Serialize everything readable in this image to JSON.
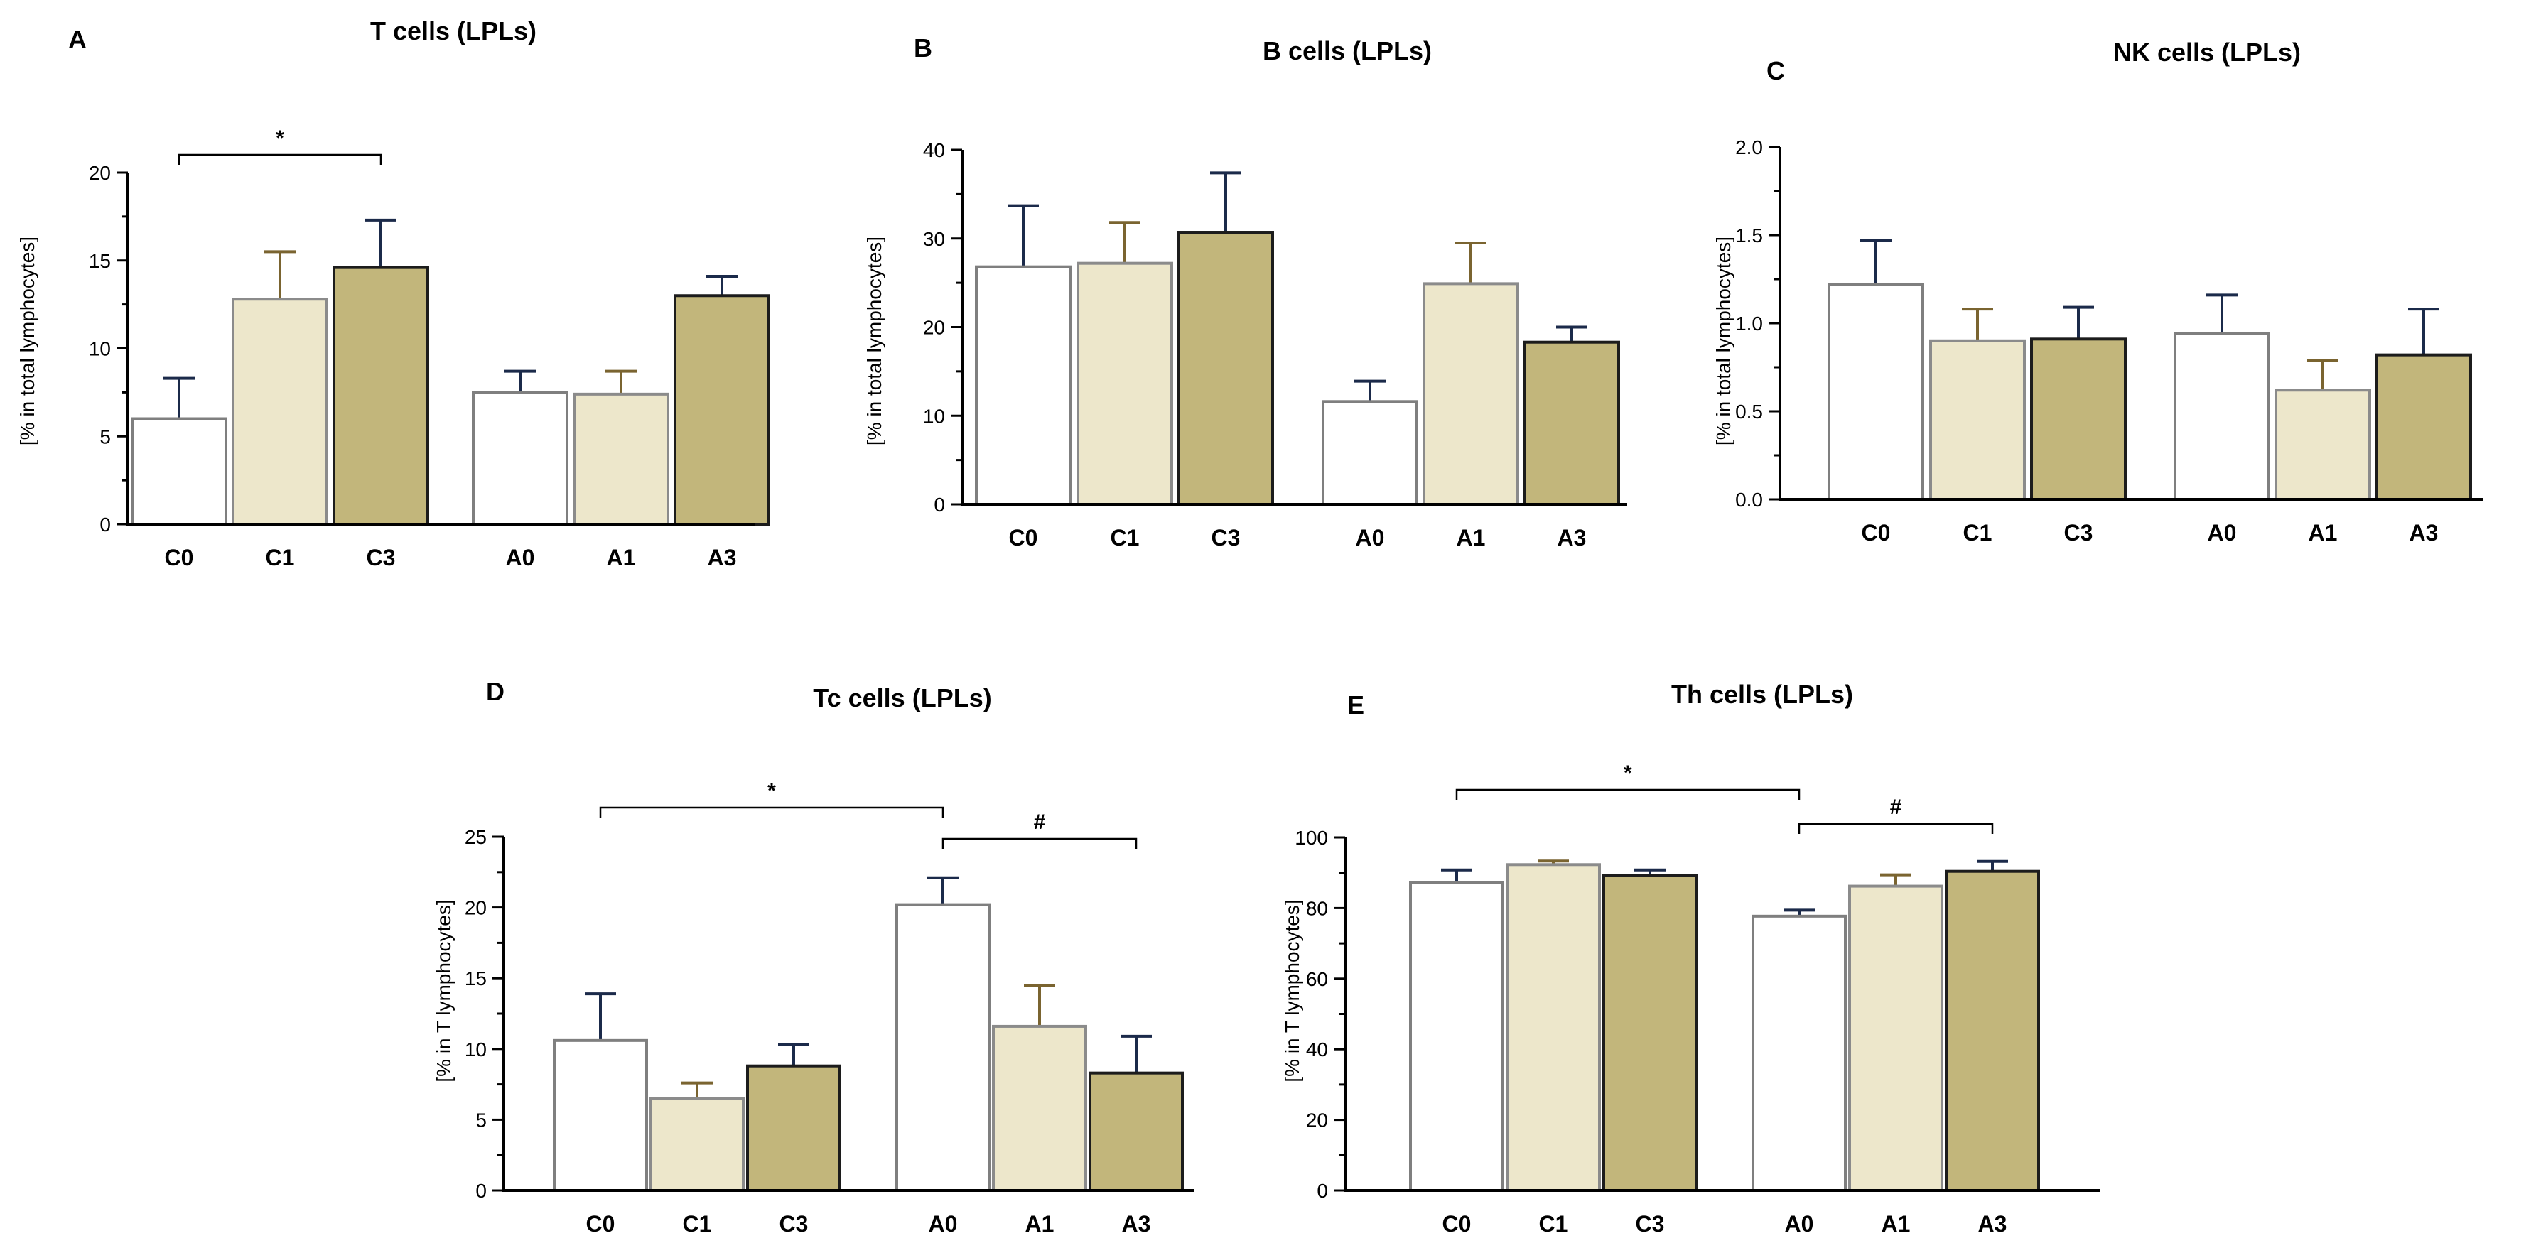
{
  "colors": {
    "g0_fill": "#ffffff",
    "g0_stroke": "#7f7f7f",
    "g0_err": "#1b2a4a",
    "g1_fill": "#ede7cb",
    "g1_stroke": "#8b8b8b",
    "g1_err": "#7a6430",
    "g3_fill": "#c2b67b",
    "g3_stroke": "#1c1c1c",
    "g3_err": "#1b2a4a"
  },
  "chart_data": [
    {
      "id": "A",
      "panel": "A",
      "type": "bar",
      "title": "T cells (LPLs)",
      "ylabel": "[% in total lymphocytes]",
      "ylim": [
        0,
        20
      ],
      "yticks": [
        0,
        5,
        10,
        15,
        20
      ],
      "yticks_labels": [
        "0",
        "5",
        "10",
        "15",
        "20"
      ],
      "categories": [
        "C0",
        "C1",
        "C3",
        "A0",
        "A1",
        "A3"
      ],
      "values": [
        6.0,
        12.8,
        14.6,
        7.5,
        7.4,
        13.0
      ],
      "errors": [
        2.3,
        2.7,
        2.7,
        1.2,
        1.3,
        1.1
      ],
      "significance": [
        {
          "from": 0,
          "to": 2,
          "label": "*"
        }
      ]
    },
    {
      "id": "B",
      "panel": "B",
      "type": "bar",
      "title": "B cells (LPLs)",
      "ylabel": "[% in total lymphocytes]",
      "ylim": [
        0,
        40
      ],
      "yticks": [
        0,
        10,
        20,
        30,
        40
      ],
      "yticks_labels": [
        "0",
        "10",
        "20",
        "30",
        "40"
      ],
      "categories": [
        "C0",
        "C1",
        "C3",
        "A0",
        "A1",
        "A3"
      ],
      "values": [
        26.8,
        27.2,
        30.7,
        11.6,
        24.9,
        18.3
      ],
      "errors": [
        6.9,
        4.6,
        6.7,
        2.3,
        4.6,
        1.7
      ],
      "significance": []
    },
    {
      "id": "C",
      "panel": "C",
      "type": "bar",
      "title": "NK cells (LPLs)",
      "ylabel": "[% in total lymphocytes]",
      "ylim": [
        0,
        2.0
      ],
      "yticks": [
        0,
        0.5,
        1.0,
        1.5,
        2.0
      ],
      "yticks_labels": [
        "0.0",
        "0.5",
        "1.0",
        "1.5",
        "2.0"
      ],
      "categories": [
        "C0",
        "C1",
        "C3",
        "A0",
        "A1",
        "A3"
      ],
      "values": [
        1.22,
        0.9,
        0.91,
        0.94,
        0.62,
        0.82
      ],
      "errors": [
        0.25,
        0.18,
        0.18,
        0.22,
        0.17,
        0.26
      ],
      "significance": []
    },
    {
      "id": "D",
      "panel": "D",
      "type": "bar",
      "title": "Tc cells (LPLs)",
      "ylabel": "[% in T lymphocytes]",
      "ylim": [
        0,
        25
      ],
      "yticks": [
        0,
        5,
        10,
        15,
        20,
        25
      ],
      "yticks_labels": [
        "0",
        "5",
        "10",
        "15",
        "20",
        "25"
      ],
      "categories": [
        "C0",
        "C1",
        "C3",
        "A0",
        "A1",
        "A3"
      ],
      "values": [
        10.6,
        6.5,
        8.8,
        20.2,
        11.6,
        8.3
      ],
      "errors": [
        3.3,
        1.1,
        1.5,
        1.9,
        2.9,
        2.6
      ],
      "significance": [
        {
          "from": 0,
          "to": 3,
          "label": "*"
        },
        {
          "from": 3,
          "to": 5,
          "label": "#"
        }
      ]
    },
    {
      "id": "E",
      "panel": "E",
      "type": "bar",
      "title": "Th cells (LPLs)",
      "ylabel": "[% in T lymphocytes]",
      "ylim": [
        0,
        100
      ],
      "yticks": [
        0,
        20,
        40,
        60,
        80,
        100
      ],
      "yticks_labels": [
        "0",
        "20",
        "40",
        "60",
        "80",
        "100"
      ],
      "categories": [
        "C0",
        "C1",
        "C3",
        "A0",
        "A1",
        "A3"
      ],
      "values": [
        87.3,
        92.3,
        89.3,
        77.7,
        86.2,
        90.4
      ],
      "errors": [
        3.5,
        1.0,
        1.5,
        1.7,
        3.2,
        2.8
      ],
      "significance": [
        {
          "from": 0,
          "to": 3,
          "label": "*"
        },
        {
          "from": 3,
          "to": 5,
          "label": "#"
        }
      ]
    }
  ]
}
